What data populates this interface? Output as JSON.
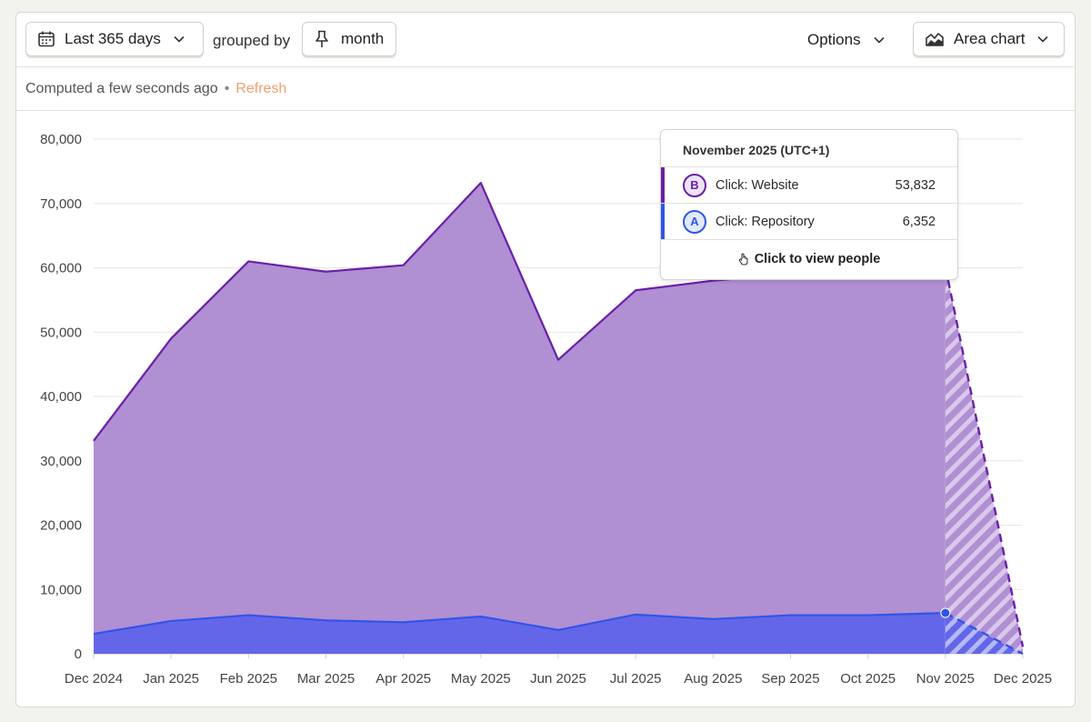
{
  "toolbar": {
    "date_range": "Last 365 days",
    "grouped_by_label": "grouped by",
    "interval": "month",
    "options_label": "Options",
    "chart_type_label": "Area chart"
  },
  "status": {
    "computed": "Computed a few seconds ago",
    "separator": "•",
    "refresh": "Refresh"
  },
  "tooltip": {
    "title": "November 2025 (UTC+1)",
    "rows": [
      {
        "badge": "B",
        "name": "Click: Website",
        "value": "53,832",
        "color": "#6a1fa8"
      },
      {
        "badge": "A",
        "name": "Click: Repository",
        "value": "6,352",
        "color": "#2f55e8"
      }
    ],
    "footer": "Click to view people"
  },
  "chart_data": {
    "type": "area",
    "stacked": true,
    "categories": [
      "Dec 2024",
      "Jan 2025",
      "Feb 2025",
      "Mar 2025",
      "Apr 2025",
      "May 2025",
      "Jun 2025",
      "Jul 2025",
      "Aug 2025",
      "Sep 2025",
      "Oct 2025",
      "Nov 2025",
      "Dec 2025"
    ],
    "y_ticks": [
      "0",
      "10,000",
      "20,000",
      "30,000",
      "40,000",
      "50,000",
      "60,000",
      "70,000",
      "80,000"
    ],
    "ylim": [
      0,
      80000
    ],
    "grid": true,
    "incomplete_from_index": 11,
    "series": [
      {
        "name": "Click: Repository",
        "color": "#2f55e8",
        "fill": "#6466e9",
        "values": [
          3100,
          5100,
          6000,
          5200,
          4900,
          5800,
          3700,
          6100,
          5400,
          6000,
          6000,
          6352,
          0
        ]
      },
      {
        "name": "Click: Website",
        "color": "#6a1fa8",
        "fill": "#b08fd3",
        "values": [
          30000,
          43900,
          55000,
          54200,
          55500,
          67400,
          42000,
          50400,
          52600,
          53000,
          53500,
          53832,
          1100
        ]
      }
    ]
  }
}
